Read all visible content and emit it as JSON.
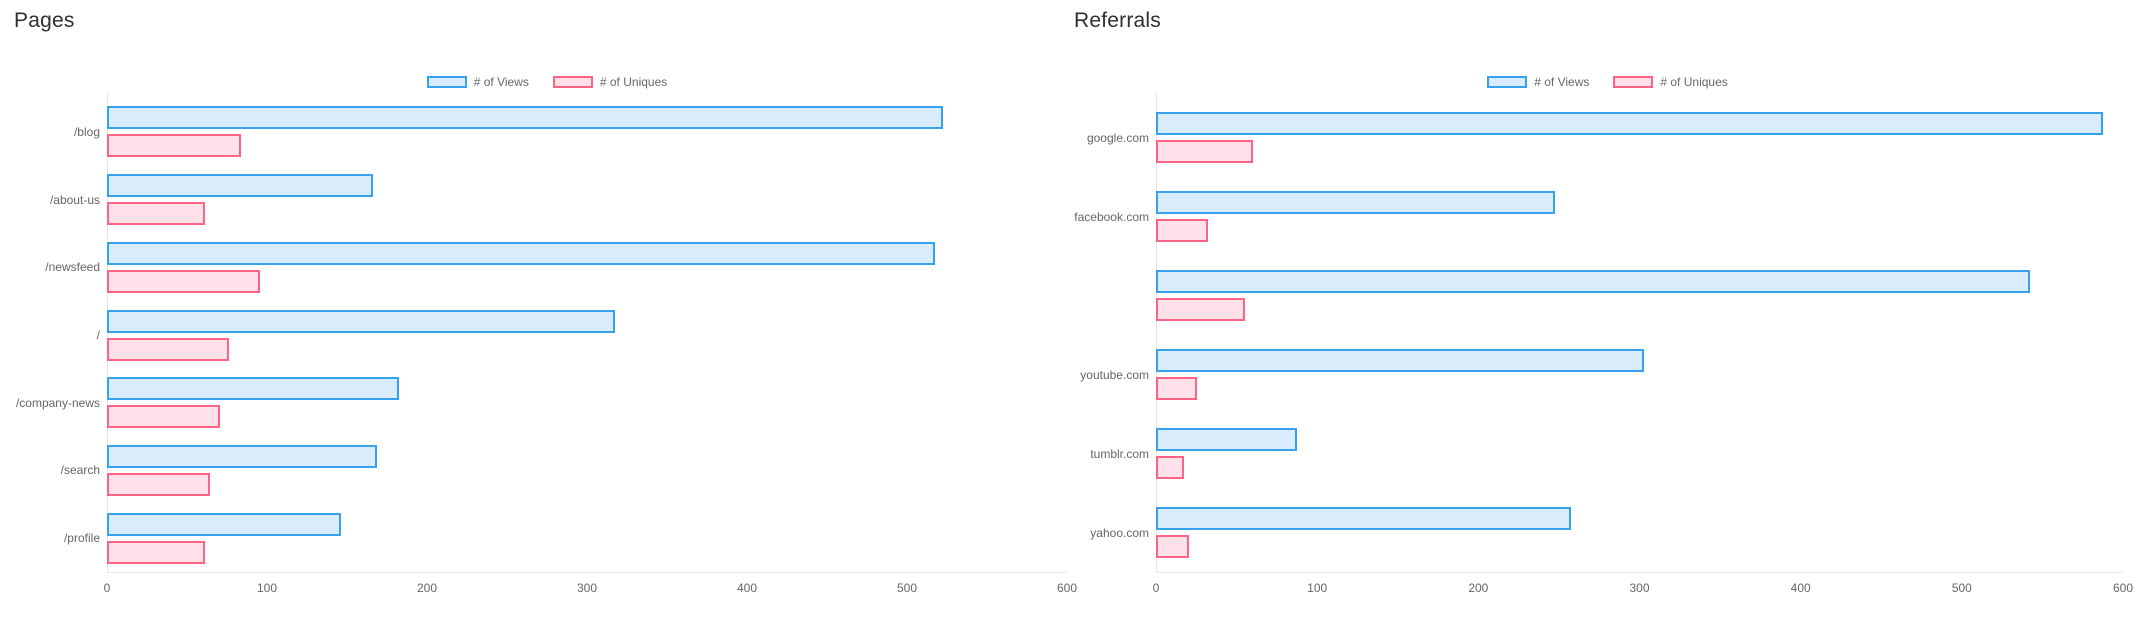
{
  "page": {
    "background": "#ffffff",
    "text_color": "#666666",
    "title_color": "#2f2f2f",
    "axis_line_color": "#e7e7e7"
  },
  "chart_data": [
    {
      "type": "bar",
      "orientation": "horizontal",
      "title": "Pages",
      "legend_position": "top",
      "grid": "axis-only",
      "categories": [
        "/blog",
        "/about-us",
        "/newsfeed",
        "/",
        "/company-news",
        "/search",
        "/profile"
      ],
      "series": [
        {
          "name": "# of Views",
          "border_color": "#36A2EB",
          "fill_color": "#D8ECFB",
          "values": [
            520,
            164,
            515,
            315,
            180,
            166,
            144
          ]
        },
        {
          "name": "# of Uniques",
          "border_color": "#FF6384",
          "fill_color": "#FFE2E9",
          "values": [
            81,
            59,
            93,
            74,
            68,
            62,
            59
          ]
        }
      ],
      "xlim": [
        0,
        600
      ],
      "xticks": [
        "0",
        "100",
        "200",
        "300",
        "400",
        "500",
        "600"
      ]
    },
    {
      "type": "bar",
      "orientation": "horizontal",
      "title": "Referrals",
      "legend_position": "top",
      "grid": "axis-only",
      "categories": [
        "google.com",
        "facebook.com",
        "",
        "youtube.com",
        "tumblr.com",
        "yahoo.com"
      ],
      "series": [
        {
          "name": "# of Views",
          "border_color": "#36A2EB",
          "fill_color": "#D8ECFB",
          "values": [
            585,
            245,
            540,
            300,
            85,
            255
          ]
        },
        {
          "name": "# of Uniques",
          "border_color": "#FF6384",
          "fill_color": "#FFE2E9",
          "values": [
            58,
            30,
            53,
            23,
            15,
            18
          ]
        }
      ],
      "xlim": [
        0,
        600
      ],
      "xticks": [
        "0",
        "100",
        "200",
        "300",
        "400",
        "500",
        "600"
      ]
    }
  ]
}
